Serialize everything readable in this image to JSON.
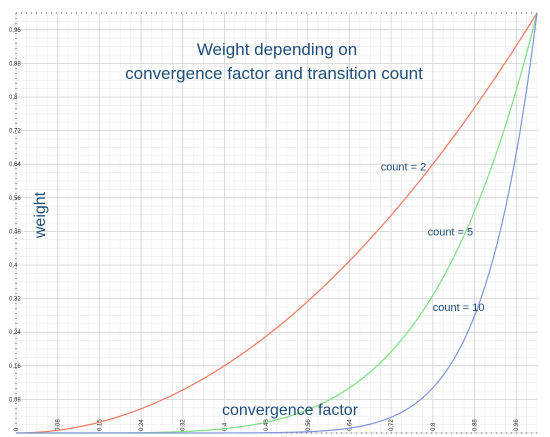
{
  "chart_data": {
    "type": "line",
    "title_line1": "Weight depending on",
    "title_line2": "convergence factor and transition count",
    "xlabel": "convergence factor",
    "ylabel": "weight",
    "xlim": [
      0,
      1
    ],
    "ylim": [
      0,
      1
    ],
    "grid": true,
    "x_ticks": [
      "0",
      "0.08",
      "0.16",
      "0.24",
      "0.32",
      "0.4",
      "0.48",
      "0.56",
      "0.64",
      "0.72",
      "0.8",
      "0.88",
      "0.96"
    ],
    "y_ticks": [
      "0",
      "0,08",
      "0,16",
      "0,24",
      "0,32",
      "0,4",
      "0,48",
      "0,56",
      "0,64",
      "0,72",
      "0,8",
      "0,88",
      "0,96"
    ],
    "x_tick_values": [
      0,
      0.08,
      0.16,
      0.24,
      0.32,
      0.4,
      0.48,
      0.56,
      0.64,
      0.72,
      0.8,
      0.88,
      0.96
    ],
    "y_tick_values": [
      0,
      0.08,
      0.16,
      0.24,
      0.32,
      0.4,
      0.48,
      0.56,
      0.64,
      0.72,
      0.8,
      0.88,
      0.96
    ],
    "series": [
      {
        "label": "count = 2",
        "color": "#f07860",
        "x": [
          0,
          0.1,
          0.2,
          0.3,
          0.4,
          0.5,
          0.6,
          0.7,
          0.8,
          0.9,
          1.0
        ],
        "y": [
          0,
          0.01,
          0.04,
          0.09,
          0.16,
          0.25,
          0.36,
          0.49,
          0.64,
          0.81,
          1.0
        ]
      },
      {
        "label": "count = 5",
        "color": "#7fe07f",
        "x": [
          0,
          0.1,
          0.2,
          0.3,
          0.4,
          0.5,
          0.6,
          0.7,
          0.8,
          0.9,
          1.0
        ],
        "y": [
          0,
          1e-05,
          0.00032,
          0.00243,
          0.01024,
          0.03125,
          0.07776,
          0.16807,
          0.32768,
          0.59049,
          1.0
        ]
      },
      {
        "label": "count = 10",
        "color": "#7f95e0",
        "x": [
          0,
          0.1,
          0.2,
          0.3,
          0.4,
          0.5,
          0.6,
          0.7,
          0.8,
          0.9,
          1.0
        ],
        "y": [
          0,
          0,
          0,
          1e-05,
          0.0001,
          0.00098,
          0.00605,
          0.02825,
          0.10737,
          0.34868,
          1.0
        ]
      }
    ],
    "annotations": [
      {
        "text": "count = 2",
        "x": 0.7,
        "y": 0.625
      },
      {
        "text": "count = 5",
        "x": 0.79,
        "y": 0.47
      },
      {
        "text": "count = 10",
        "x": 0.8,
        "y": 0.29
      }
    ]
  }
}
